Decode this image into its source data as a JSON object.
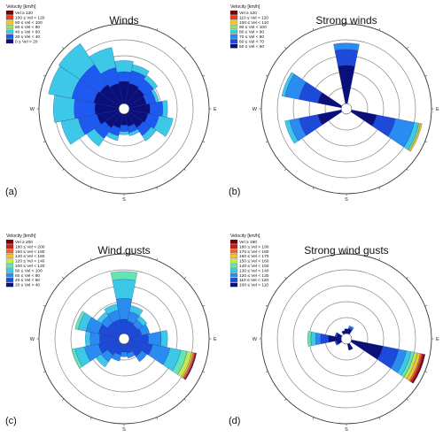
{
  "chart_data": [
    {
      "type": "wind-rose",
      "panel": "(a)",
      "title": "Winds",
      "legend": {
        "title": "Velocity [km/h]",
        "entries": [
          {
            "label": "Vel ≥ 120",
            "color": "#7a0000"
          },
          {
            "label": "100 ≤ Vel < 120",
            "color": "#e8401c"
          },
          {
            "label": "80 ≤ Vel < 100",
            "color": "#f4c430"
          },
          {
            "label": "60 ≤ Vel < 80",
            "color": "#9be070"
          },
          {
            "label": "40 ≤ Vel < 60",
            "color": "#3cc8e6"
          },
          {
            "label": "20 ≤ Vel < 40",
            "color": "#1e5af0"
          },
          {
            "label": "0 ≤ Vel < 20",
            "color": "#0a0f7a"
          }
        ]
      },
      "rmax": 5,
      "sectors": [
        {
          "dir": 0,
          "values": [
            1.4,
            0.6,
            0.7,
            0,
            0,
            0,
            0
          ]
        },
        {
          "dir": 22.5,
          "values": [
            1.3,
            0.8,
            0.4,
            0,
            0,
            0,
            0
          ]
        },
        {
          "dir": 45,
          "values": [
            1.2,
            0.7,
            0.3,
            0,
            0,
            0,
            0
          ]
        },
        {
          "dir": 67.5,
          "values": [
            1.1,
            0.6,
            0.2,
            0,
            0,
            0,
            0
          ]
        },
        {
          "dir": 90,
          "values": [
            1.3,
            0.8,
            0.3,
            0,
            0,
            0,
            0
          ]
        },
        {
          "dir": 112.5,
          "values": [
            1.2,
            0.7,
            0.9,
            0,
            0,
            0,
            0
          ]
        },
        {
          "dir": 135,
          "values": [
            1.1,
            0.6,
            0.4,
            0,
            0,
            0,
            0
          ]
        },
        {
          "dir": 157.5,
          "values": [
            0.8,
            0.4,
            0.2,
            0,
            0,
            0,
            0
          ]
        },
        {
          "dir": 180,
          "values": [
            0.7,
            0.4,
            0.2,
            0,
            0,
            0,
            0
          ]
        },
        {
          "dir": 202.5,
          "values": [
            0.9,
            0.5,
            0.3,
            0,
            0,
            0,
            0
          ]
        },
        {
          "dir": 225,
          "values": [
            1.1,
            0.8,
            0.6,
            0,
            0,
            0,
            0
          ]
        },
        {
          "dir": 247.5,
          "values": [
            1.4,
            1.2,
            1.1,
            0,
            0,
            0,
            0
          ]
        },
        {
          "dir": 270,
          "values": [
            1.5,
            1.3,
            1.3,
            0,
            0,
            0,
            0
          ]
        },
        {
          "dir": 292.5,
          "values": [
            1.6,
            1.4,
            1.5,
            0,
            0,
            0,
            0
          ]
        },
        {
          "dir": 315,
          "values": [
            1.5,
            1.5,
            1.6,
            0,
            0,
            0,
            0
          ]
        },
        {
          "dir": 337.5,
          "values": [
            1.3,
            1.0,
            1.3,
            0,
            0,
            0,
            0
          ]
        }
      ]
    },
    {
      "type": "wind-rose",
      "panel": "(b)",
      "title": "Strong winds",
      "legend": {
        "title": "Velocity [km/h]",
        "entries": [
          {
            "label": "Vel ≥ 120",
            "color": "#7a0000"
          },
          {
            "label": "110 ≤ Vel < 120",
            "color": "#e8401c"
          },
          {
            "label": "100 ≤ Vel < 110",
            "color": "#f4c430"
          },
          {
            "label": "90 ≤ Vel < 100",
            "color": "#9be070"
          },
          {
            "label": "80 ≤ Vel < 90",
            "color": "#3cc8e6"
          },
          {
            "label": "70 ≤ Vel < 80",
            "color": "#2a8cf0"
          },
          {
            "label": "60 ≤ Vel < 70",
            "color": "#1e4ad8"
          },
          {
            "label": "50 ≤ Vel < 60",
            "color": "#0a0f7a"
          }
        ]
      },
      "rmax": 5,
      "sectors": [
        {
          "dir": 0,
          "values": [
            2.4,
            1.0,
            0.4,
            0,
            0,
            0,
            0,
            0
          ]
        },
        {
          "dir": 22.5,
          "values": [
            0,
            0,
            0,
            0,
            0,
            0,
            0,
            0
          ]
        },
        {
          "dir": 45,
          "values": [
            0,
            0,
            0,
            0,
            0,
            0,
            0,
            0
          ]
        },
        {
          "dir": 67.5,
          "values": [
            0,
            0,
            0,
            0,
            0,
            0,
            0,
            0
          ]
        },
        {
          "dir": 90,
          "values": [
            0,
            0,
            0,
            0,
            0,
            0,
            0,
            0
          ]
        },
        {
          "dir": 112.5,
          "values": [
            1.6,
            1.2,
            1.2,
            0.3,
            0.1,
            0.1,
            0,
            0
          ]
        },
        {
          "dir": 135,
          "values": [
            0,
            0,
            0,
            0,
            0,
            0,
            0,
            0
          ]
        },
        {
          "dir": 157.5,
          "values": [
            0,
            0,
            0,
            0,
            0,
            0,
            0,
            0
          ]
        },
        {
          "dir": 180,
          "values": [
            0,
            0,
            0,
            0,
            0,
            0,
            0,
            0
          ]
        },
        {
          "dir": 202.5,
          "values": [
            0,
            0,
            0,
            0,
            0,
            0,
            0,
            0
          ]
        },
        {
          "dir": 225,
          "values": [
            0,
            0,
            0,
            0,
            0,
            0,
            0,
            0
          ]
        },
        {
          "dir": 247.5,
          "values": [
            1.5,
            1.2,
            0.6,
            0.3,
            0,
            0,
            0,
            0
          ]
        },
        {
          "dir": 270,
          "values": [
            0,
            0,
            0,
            0,
            0,
            0,
            0,
            0
          ]
        },
        {
          "dir": 292.5,
          "values": [
            1.5,
            1.2,
            0.9,
            0.2,
            0,
            0,
            0,
            0
          ]
        },
        {
          "dir": 315,
          "values": [
            0,
            0,
            0,
            0,
            0,
            0,
            0,
            0
          ]
        },
        {
          "dir": 337.5,
          "values": [
            0,
            0,
            0,
            0,
            0,
            0,
            0,
            0
          ]
        }
      ]
    },
    {
      "type": "wind-rose",
      "panel": "(c)",
      "title": "Wind gusts",
      "legend": {
        "title": "Velocity [km/h]",
        "entries": [
          {
            "label": "Vel ≥ 200",
            "color": "#7a0000"
          },
          {
            "label": "180 ≤ Vel < 200",
            "color": "#c81e1e"
          },
          {
            "label": "160 ≤ Vel < 180",
            "color": "#f06428"
          },
          {
            "label": "140 ≤ Vel < 160",
            "color": "#f4c430"
          },
          {
            "label": "120 ≤ Vel < 140",
            "color": "#c8e650"
          },
          {
            "label": "100 ≤ Vel < 120",
            "color": "#64e6b4"
          },
          {
            "label": "80 ≤ Vel < 100",
            "color": "#3cc8e6"
          },
          {
            "label": "60 ≤ Vel < 80",
            "color": "#2a8cf0"
          },
          {
            "label": "40 ≤ Vel < 60",
            "color": "#1e4ad8"
          },
          {
            "label": "20 ≤ Vel < 40",
            "color": "#0a0f7a"
          }
        ]
      },
      "rmax": 5,
      "sectors": [
        {
          "dir": 0,
          "values": [
            0,
            0.9,
            1.3,
            1.2,
            0.5,
            0,
            0,
            0,
            0,
            0
          ]
        },
        {
          "dir": 22.5,
          "values": [
            0,
            0.8,
            0.6,
            0.4,
            0,
            0,
            0,
            0,
            0,
            0
          ]
        },
        {
          "dir": 45,
          "values": [
            0,
            0.7,
            0.4,
            0.3,
            0,
            0,
            0,
            0,
            0,
            0
          ]
        },
        {
          "dir": 67.5,
          "values": [
            0,
            0.8,
            0.5,
            0,
            0,
            0,
            0,
            0,
            0,
            0
          ]
        },
        {
          "dir": 90,
          "values": [
            0,
            1.2,
            0.8,
            0.4,
            0,
            0,
            0,
            0,
            0,
            0
          ]
        },
        {
          "dir": 112.5,
          "values": [
            0,
            1.5,
            1.1,
            0.7,
            0.4,
            0.3,
            0.1,
            0.1,
            0.05,
            0.05
          ]
        },
        {
          "dir": 135,
          "values": [
            0,
            1.0,
            0.4,
            0,
            0,
            0,
            0,
            0,
            0,
            0
          ]
        },
        {
          "dir": 157.5,
          "values": [
            0,
            0.6,
            0.3,
            0,
            0,
            0,
            0,
            0,
            0,
            0
          ]
        },
        {
          "dir": 180,
          "values": [
            0,
            0.5,
            0.3,
            0,
            0,
            0,
            0,
            0,
            0,
            0
          ]
        },
        {
          "dir": 202.5,
          "values": [
            0,
            0.7,
            0.4,
            0,
            0,
            0,
            0,
            0,
            0,
            0
          ]
        },
        {
          "dir": 225,
          "values": [
            0,
            0.9,
            0.5,
            0.4,
            0,
            0,
            0,
            0,
            0,
            0
          ]
        },
        {
          "dir": 247.5,
          "values": [
            0,
            1.3,
            0.9,
            0.6,
            0.2,
            0,
            0,
            0,
            0,
            0
          ]
        },
        {
          "dir": 270,
          "values": [
            0,
            1.2,
            0.6,
            0.3,
            0,
            0,
            0,
            0,
            0,
            0
          ]
        },
        {
          "dir": 292.5,
          "values": [
            0,
            1.3,
            0.8,
            0.5,
            0.2,
            0,
            0,
            0,
            0,
            0
          ]
        },
        {
          "dir": 315,
          "values": [
            0,
            0.9,
            0.5,
            0.3,
            0,
            0,
            0,
            0,
            0,
            0
          ]
        },
        {
          "dir": 337.5,
          "values": [
            0,
            0.9,
            0.6,
            0.4,
            0,
            0,
            0,
            0,
            0,
            0
          ]
        }
      ]
    },
    {
      "type": "wind-rose",
      "panel": "(d)",
      "title": "Strong wind gusts",
      "legend": {
        "title": "Velocity [km/h]",
        "entries": [
          {
            "label": "Vel ≥ 190",
            "color": "#7a0000"
          },
          {
            "label": "180 ≤ Vel < 190",
            "color": "#c81e1e"
          },
          {
            "label": "170 ≤ Vel < 180",
            "color": "#f06428"
          },
          {
            "label": "160 ≤ Vel < 170",
            "color": "#f4c430"
          },
          {
            "label": "150 ≤ Vel < 160",
            "color": "#c8e650"
          },
          {
            "label": "140 ≤ Vel < 150",
            "color": "#64e6b4"
          },
          {
            "label": "130 ≤ Vel < 140",
            "color": "#3cc8e6"
          },
          {
            "label": "120 ≤ Vel < 130",
            "color": "#2a8cf0"
          },
          {
            "label": "110 ≤ Vel < 120",
            "color": "#1e4ad8"
          },
          {
            "label": "100 ≤ Vel < 110",
            "color": "#0a0f7a"
          }
        ]
      },
      "rmax": 5,
      "sectors": [
        {
          "dir": 0,
          "values": [
            0.3,
            0,
            0,
            0,
            0,
            0,
            0,
            0,
            0,
            0
          ]
        },
        {
          "dir": 22.5,
          "values": [
            0.3,
            0.1,
            0.1,
            0,
            0,
            0,
            0,
            0,
            0,
            0
          ]
        },
        {
          "dir": 45,
          "values": [
            0,
            0,
            0,
            0,
            0,
            0,
            0,
            0,
            0,
            0
          ]
        },
        {
          "dir": 67.5,
          "values": [
            0,
            0,
            0,
            0,
            0,
            0,
            0,
            0,
            0,
            0
          ]
        },
        {
          "dir": 90,
          "values": [
            0,
            0,
            0,
            0,
            0,
            0,
            0,
            0,
            0,
            0
          ]
        },
        {
          "dir": 112.5,
          "values": [
            2.0,
            1.0,
            0.5,
            0.3,
            0.2,
            0.2,
            0.2,
            0.1,
            0.1,
            0.1
          ]
        },
        {
          "dir": 135,
          "values": [
            0,
            0,
            0,
            0,
            0,
            0,
            0,
            0,
            0,
            0
          ]
        },
        {
          "dir": 157.5,
          "values": [
            0.4,
            0,
            0,
            0,
            0,
            0,
            0,
            0,
            0,
            0
          ]
        },
        {
          "dir": 180,
          "values": [
            0,
            0,
            0,
            0,
            0,
            0,
            0,
            0,
            0,
            0
          ]
        },
        {
          "dir": 202.5,
          "values": [
            0,
            0,
            0,
            0,
            0,
            0,
            0,
            0,
            0,
            0
          ]
        },
        {
          "dir": 225,
          "values": [
            0,
            0,
            0,
            0,
            0,
            0,
            0,
            0,
            0,
            0
          ]
        },
        {
          "dir": 247.5,
          "values": [
            0.3,
            0.1,
            0,
            0,
            0,
            0,
            0,
            0,
            0,
            0
          ]
        },
        {
          "dir": 270,
          "values": [
            0.8,
            0.5,
            0.3,
            0.3,
            0.2,
            0,
            0,
            0,
            0,
            0
          ]
        },
        {
          "dir": 292.5,
          "values": [
            0.3,
            0.1,
            0,
            0,
            0,
            0,
            0,
            0,
            0,
            0
          ]
        },
        {
          "dir": 315,
          "values": [
            0,
            0,
            0,
            0,
            0,
            0,
            0,
            0,
            0,
            0
          ]
        },
        {
          "dir": 337.5,
          "values": [
            0.2,
            0,
            0,
            0,
            0,
            0,
            0,
            0,
            0,
            0
          ]
        }
      ]
    }
  ],
  "compass": {
    "n": "N",
    "e": "E",
    "s": "S",
    "w": "W"
  }
}
